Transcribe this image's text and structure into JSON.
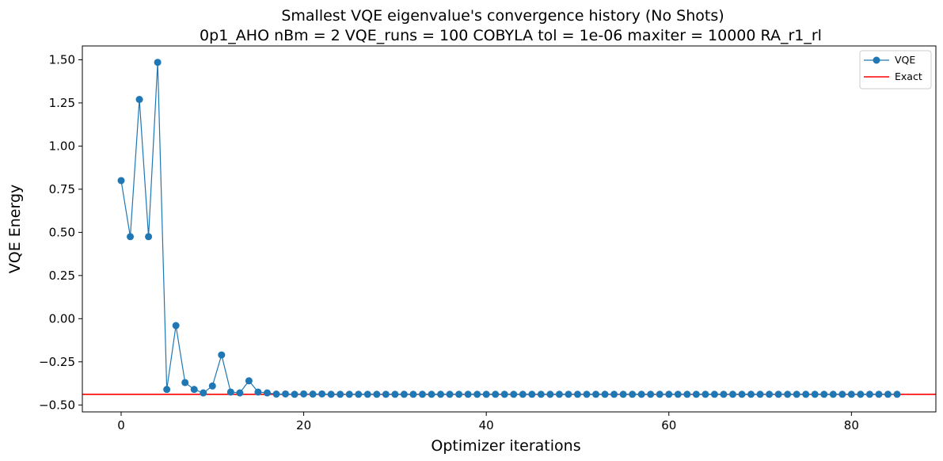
{
  "chart_data": {
    "type": "line",
    "title": "Smallest VQE eigenvalue's convergence history (No Shots)",
    "subtitle": "0p1_AHO    nBm = 2    VQE_runs = 100    COBYLA    tol = 1e-06    maxiter = 10000    RA_r1_rl",
    "xlabel": "Optimizer iterations",
    "ylabel": "VQE Energy",
    "xlim": [
      -4.25,
      89.25
    ],
    "ylim": [
      -0.54,
      1.58
    ],
    "xticks": [
      0,
      20,
      40,
      60,
      80
    ],
    "xtick_labels": [
      "0",
      "20",
      "40",
      "60",
      "80"
    ],
    "yticks": [
      -0.5,
      -0.25,
      0.0,
      0.25,
      0.5,
      0.75,
      1.0,
      1.25,
      1.5
    ],
    "ytick_labels": [
      "−0.50",
      "−0.25",
      "0.00",
      "0.25",
      "0.50",
      "0.75",
      "1.00",
      "1.25",
      "1.50"
    ],
    "grid": false,
    "legend": {
      "placement": "top-right",
      "entries": [
        "VQE",
        "Exact"
      ]
    },
    "series": [
      {
        "name": "VQE",
        "color": "#1f77b4",
        "style": "line-with-markers",
        "values": [
          0.8,
          0.475,
          1.27,
          0.475,
          1.485,
          -0.41,
          -0.04,
          -0.37,
          -0.41,
          -0.43,
          -0.39,
          -0.21,
          -0.425,
          -0.43,
          -0.36,
          -0.425,
          -0.43,
          -0.437,
          -0.436,
          -0.438,
          -0.436,
          -0.437,
          -0.436,
          -0.438,
          -0.438,
          -0.438,
          -0.438,
          -0.438,
          -0.438,
          -0.438,
          -0.438,
          -0.438,
          -0.438,
          -0.438,
          -0.438,
          -0.438,
          -0.438,
          -0.438,
          -0.438,
          -0.438,
          -0.438,
          -0.438,
          -0.438,
          -0.438,
          -0.438,
          -0.438,
          -0.438,
          -0.438,
          -0.438,
          -0.438,
          -0.438,
          -0.438,
          -0.438,
          -0.438,
          -0.438,
          -0.438,
          -0.438,
          -0.438,
          -0.438,
          -0.438,
          -0.438,
          -0.438,
          -0.438,
          -0.438,
          -0.438,
          -0.438,
          -0.438,
          -0.438,
          -0.438,
          -0.438,
          -0.438,
          -0.438,
          -0.438,
          -0.438,
          -0.438,
          -0.438,
          -0.438,
          -0.438,
          -0.438,
          -0.438,
          -0.438,
          -0.438,
          -0.438,
          -0.438,
          -0.438,
          -0.438
        ]
      },
      {
        "name": "Exact",
        "color": "#ff0000",
        "style": "horizontal-line",
        "y": -0.438
      }
    ]
  }
}
